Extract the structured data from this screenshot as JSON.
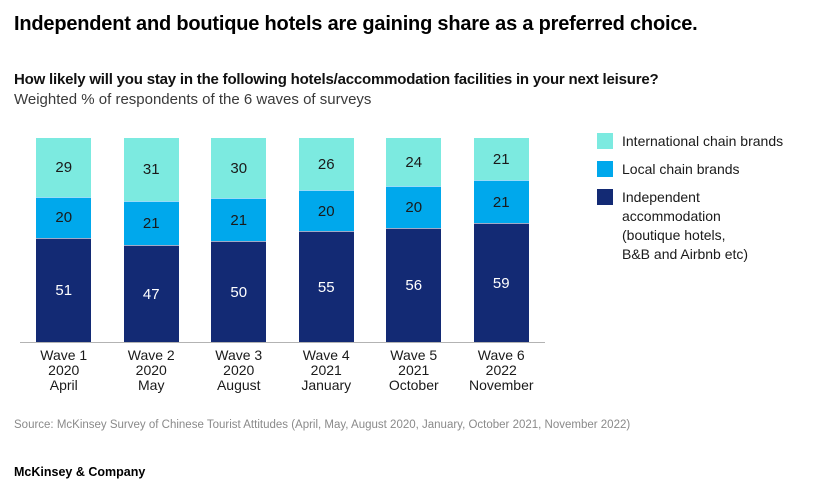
{
  "header": {
    "title": "Independent and boutique hotels are gaining share as a preferred choice.",
    "question": "How likely will you stay in the following hotels/accommodation facilities in your next leisure?",
    "unit_note": "Weighted % of respondents of the 6 waves of surveys"
  },
  "chart_data": {
    "type": "bar",
    "stacked": true,
    "grid": false,
    "legend_position": "right",
    "value_range": [
      0,
      100
    ],
    "categories": [
      [
        "Wave 1",
        "2020",
        "April"
      ],
      [
        "Wave 2",
        "2020",
        "May"
      ],
      [
        "Wave 3",
        "2020",
        "August"
      ],
      [
        "Wave 4",
        "2021",
        "January"
      ],
      [
        "Wave 5",
        "2021",
        "October"
      ],
      [
        "Wave 6",
        "2022",
        "November"
      ]
    ],
    "series": [
      {
        "name": "International chain brands",
        "legend_lines": "International chain brands",
        "color": "#7CEAE0",
        "label_color": "#1a1a1a",
        "values": [
          29,
          31,
          30,
          26,
          24,
          21
        ]
      },
      {
        "name": "Local chain brands",
        "legend_lines": "Local chain brands",
        "color": "#00A8EC",
        "label_color": "#1a1a1a",
        "values": [
          20,
          21,
          21,
          20,
          20,
          21
        ]
      },
      {
        "name": "Independent accommodation (boutique hotels, B&B and Airbnb etc)",
        "legend_lines": "Independent\naccommodation\n(boutique hotels,\nB&B and Airbnb etc)",
        "color": "#132A74",
        "label_color": "#FFFFFF",
        "values": [
          51,
          47,
          50,
          55,
          56,
          59
        ]
      }
    ],
    "axis_line_color": "#b3b3b3"
  },
  "footer": {
    "source": "Source: McKinsey Survey of Chinese Tourist Attitudes (April, May, August 2020, January, October 2021, November 2022)",
    "brand": "McKinsey & Company"
  }
}
